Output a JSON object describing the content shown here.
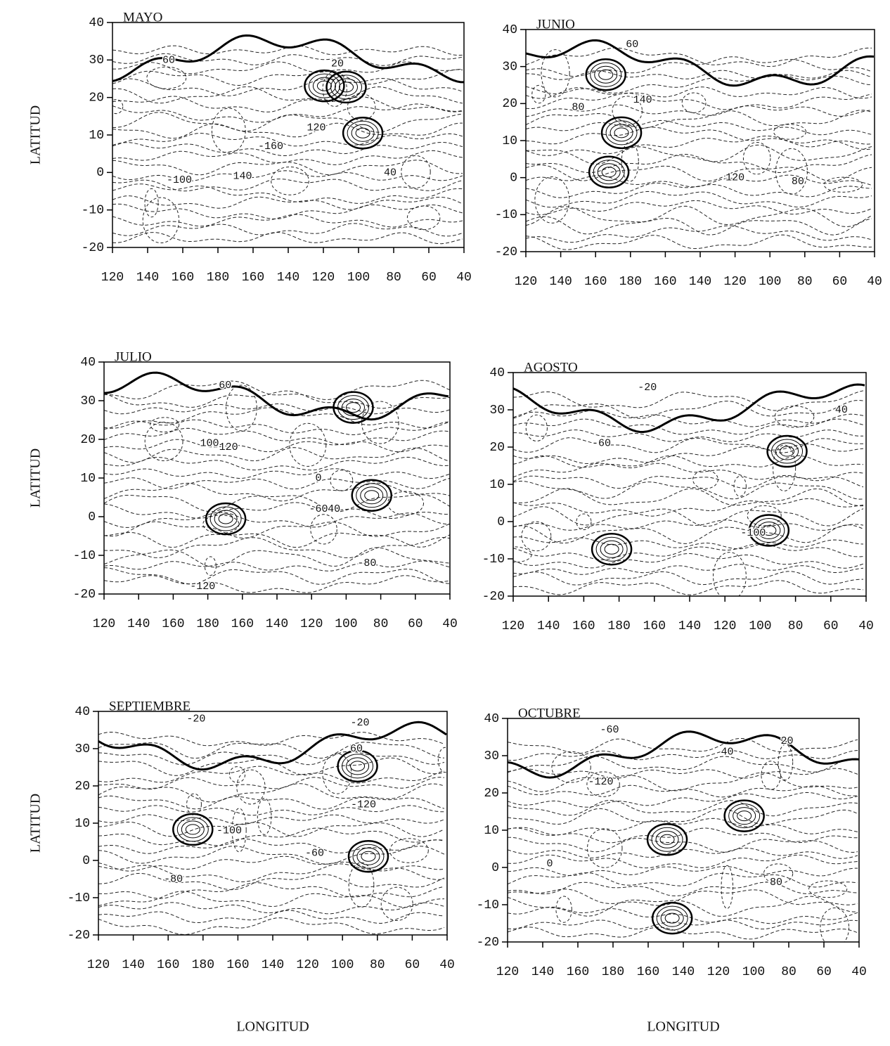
{
  "chart_data": [
    {
      "type": "contour",
      "title": "MAYO",
      "ylabel": "LATITUD",
      "xlim": [
        120,
        320
      ],
      "ylim": [
        -20,
        40
      ],
      "xticks": [
        120,
        140,
        160,
        180,
        {
          "value": 200,
          "label": "160"
        },
        {
          "value": 220,
          "label": "140"
        },
        {
          "value": 240,
          "label": "120"
        },
        {
          "value": 260,
          "label": "100"
        },
        {
          "value": 280,
          "label": "80"
        },
        {
          "value": 300,
          "label": "60"
        },
        {
          "value": 320,
          "label": "40"
        }
      ],
      "yticks": [
        -20,
        -10,
        0,
        10,
        20,
        30,
        40
      ],
      "annotations": [
        {
          "text": "60",
          "x": 152,
          "y": 30
        },
        {
          "text": "-100",
          "x": 158,
          "y": -2
        },
        {
          "text": "140",
          "x": 194,
          "y": -1
        },
        {
          "text": "-160",
          "x": 210,
          "y": 7
        },
        {
          "text": "120",
          "x": 236,
          "y": 12
        },
        {
          "text": "20",
          "x": 248,
          "y": 29
        },
        {
          "text": "40",
          "x": 278,
          "y": 0
        }
      ]
    },
    {
      "type": "contour",
      "title": "JUNIO",
      "xlim": [
        120,
        320
      ],
      "ylim": [
        -20,
        40
      ],
      "xticks": [
        120,
        140,
        160,
        180,
        {
          "value": 200,
          "label": "160"
        },
        {
          "value": 220,
          "label": "140"
        },
        {
          "value": 240,
          "label": "120"
        },
        {
          "value": 260,
          "label": "100"
        },
        {
          "value": 280,
          "label": "80"
        },
        {
          "value": 300,
          "label": "60"
        },
        {
          "value": 320,
          "label": "40"
        }
      ],
      "yticks": [
        -20,
        -10,
        0,
        10,
        20,
        30,
        40
      ],
      "annotations": [
        {
          "text": "60",
          "x": 181,
          "y": 36
        },
        {
          "text": "80",
          "x": 150,
          "y": 19
        },
        {
          "text": "140",
          "x": 187,
          "y": 21
        },
        {
          "text": "120",
          "x": 240,
          "y": 0
        },
        {
          "text": "80",
          "x": 276,
          "y": -1
        }
      ]
    },
    {
      "type": "contour",
      "title": "JULIO",
      "ylabel": "LATITUD",
      "xlim": [
        120,
        320
      ],
      "ylim": [
        -20,
        40
      ],
      "xticks": [
        120,
        140,
        160,
        180,
        {
          "value": 200,
          "label": "160"
        },
        {
          "value": 220,
          "label": "140"
        },
        {
          "value": 240,
          "label": "120"
        },
        {
          "value": 260,
          "label": "100"
        },
        {
          "value": 280,
          "label": "80"
        },
        {
          "value": 300,
          "label": "60"
        },
        {
          "value": 320,
          "label": "40"
        }
      ],
      "yticks": [
        -20,
        -10,
        0,
        10,
        20,
        30,
        40
      ],
      "annotations": [
        {
          "text": "60",
          "x": 190,
          "y": 34
        },
        {
          "text": "100",
          "x": 181,
          "y": 19
        },
        {
          "text": "120",
          "x": 192,
          "y": 18
        },
        {
          "text": "0",
          "x": 244,
          "y": 10
        },
        {
          "text": "-60",
          "x": 244,
          "y": 2
        },
        {
          "text": "40",
          "x": 253,
          "y": 2
        },
        {
          "text": "-80",
          "x": 272,
          "y": -12
        },
        {
          "text": "-120",
          "x": 177,
          "y": -18
        }
      ]
    },
    {
      "type": "contour",
      "title": "AGOSTO",
      "xlim": [
        120,
        320
      ],
      "ylim": [
        -20,
        40
      ],
      "xticks": [
        120,
        140,
        160,
        180,
        {
          "value": 200,
          "label": "160"
        },
        {
          "value": 220,
          "label": "140"
        },
        {
          "value": 240,
          "label": "120"
        },
        {
          "value": 260,
          "label": "100"
        },
        {
          "value": 280,
          "label": "80"
        },
        {
          "value": 300,
          "label": "60"
        },
        {
          "value": 320,
          "label": "40"
        }
      ],
      "yticks": [
        -20,
        -10,
        0,
        10,
        20,
        30,
        40
      ],
      "annotations": [
        {
          "text": "-20",
          "x": 196,
          "y": 36
        },
        {
          "text": "40",
          "x": 306,
          "y": 30
        },
        {
          "text": "-60",
          "x": 170,
          "y": 21
        },
        {
          "text": "-100",
          "x": 256,
          "y": -3
        }
      ]
    },
    {
      "type": "contour",
      "title": "SEPTIEMBRE",
      "ylabel": "LATITUD",
      "xlabel": "LONGITUD",
      "xlim": [
        120,
        320
      ],
      "ylim": [
        -20,
        40
      ],
      "xticks": [
        120,
        140,
        160,
        180,
        {
          "value": 200,
          "label": "160"
        },
        {
          "value": 220,
          "label": "140"
        },
        {
          "value": 240,
          "label": "120"
        },
        {
          "value": 260,
          "label": "100"
        },
        {
          "value": 280,
          "label": "80"
        },
        {
          "value": 300,
          "label": "60"
        },
        {
          "value": 320,
          "label": "40"
        }
      ],
      "yticks": [
        -20,
        -10,
        0,
        10,
        20,
        30,
        40
      ],
      "annotations": [
        {
          "text": "-20",
          "x": 176,
          "y": 38
        },
        {
          "text": "-20",
          "x": 270,
          "y": 37
        },
        {
          "text": "60",
          "x": 268,
          "y": 30
        },
        {
          "text": "-100",
          "x": 195,
          "y": 8
        },
        {
          "text": "-120",
          "x": 272,
          "y": 15
        },
        {
          "text": "-60",
          "x": 244,
          "y": 2
        },
        {
          "text": "-80",
          "x": 163,
          "y": -5
        }
      ]
    },
    {
      "type": "contour",
      "title": "OCTUBRE",
      "xlabel": "LONGITUD",
      "xlim": [
        120,
        320
      ],
      "ylim": [
        -20,
        40
      ],
      "xticks": [
        120,
        140,
        160,
        180,
        {
          "value": 200,
          "label": "160"
        },
        {
          "value": 220,
          "label": "140"
        },
        {
          "value": 240,
          "label": "120"
        },
        {
          "value": 260,
          "label": "100"
        },
        {
          "value": 280,
          "label": "80"
        },
        {
          "value": 300,
          "label": "60"
        },
        {
          "value": 320,
          "label": "40"
        }
      ],
      "yticks": [
        -20,
        -10,
        0,
        10,
        20,
        30,
        40
      ],
      "annotations": [
        {
          "text": "-60",
          "x": 178,
          "y": 37
        },
        {
          "text": "20",
          "x": 279,
          "y": 34
        },
        {
          "text": "40",
          "x": 245,
          "y": 31
        },
        {
          "text": "-120",
          "x": 173,
          "y": 23
        },
        {
          "text": "0",
          "x": 144,
          "y": 1
        },
        {
          "text": "-80",
          "x": 271,
          "y": -4
        }
      ]
    }
  ]
}
